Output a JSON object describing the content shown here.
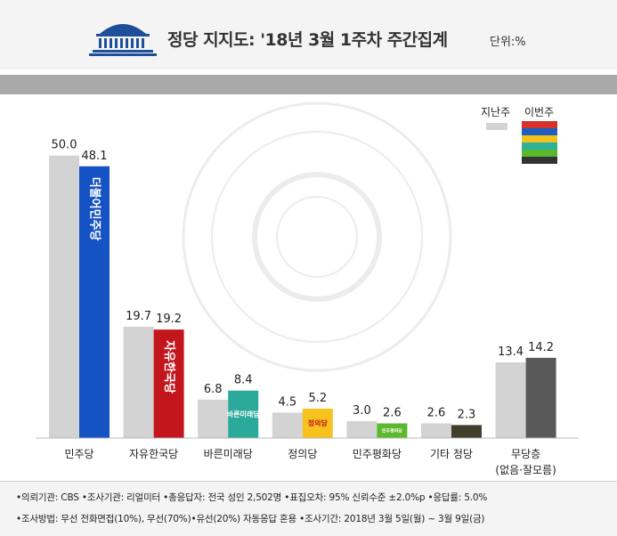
{
  "header": {
    "title": "정당 지지도: '18년 3월 1주차 주간집계",
    "unit": "단위:%"
  },
  "legend": {
    "prev_label": "지난주",
    "curr_label": "이번주",
    "curr_swatch_colors": [
      "#d6322a",
      "#1f5fbf",
      "#f2c21b",
      "#2eb09b",
      "#5ab82e",
      "#333333"
    ]
  },
  "chart_data": {
    "type": "bar",
    "categories": [
      "민주당",
      "자유한국당",
      "바른미래당",
      "정의당",
      "민주평화당",
      "기타 정당",
      "무당층"
    ],
    "category_sublabels": [
      "",
      "",
      "",
      "",
      "",
      "",
      "(없음·잘모름)"
    ],
    "series": [
      {
        "name": "지난주",
        "values": [
          50.0,
          19.7,
          6.8,
          4.5,
          3.0,
          2.6,
          13.4
        ],
        "color": "#d3d3d3"
      },
      {
        "name": "이번주",
        "values": [
          48.1,
          19.2,
          8.4,
          5.2,
          2.6,
          2.3,
          14.2
        ],
        "colors": [
          "#1552c4",
          "#c3151c",
          "#2ba99a",
          "#f7c21e",
          "#5cb82c",
          "#3f3f2c",
          "#595959"
        ]
      }
    ],
    "value_labels_prev": [
      "50.0",
      "19.7",
      "6.8",
      "4.5",
      "3.0",
      "2.6",
      "13.4"
    ],
    "value_labels_curr": [
      "48.1",
      "19.2",
      "8.4",
      "5.2",
      "2.6",
      "2.3",
      "14.2"
    ],
    "bar_text": [
      "더불어민주당",
      "자유한국당",
      "바른미래당",
      "정의당",
      "민주평화당",
      "",
      ""
    ],
    "ylim": [
      0,
      52
    ]
  },
  "footer": {
    "line1": "•의뢰기관: CBS •조사기관: 리얼미터 •총응답자: 전국 성인 2,502명 •표집오차: 95% 신뢰수준 ±2.0%p •응답률: 5.0%",
    "line2": "•조사방법: 무선 전화면접(10%), 무선(70%)•유선(20%) 자동응답 혼용 •조사기간: 2018년 3월 5일(월) ~ 3월 9일(금)"
  }
}
